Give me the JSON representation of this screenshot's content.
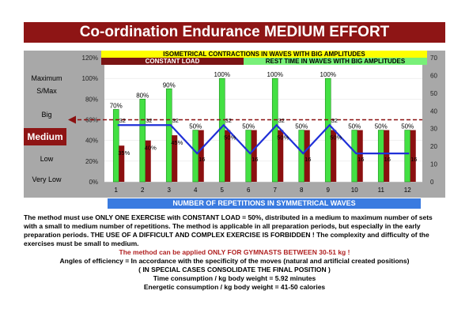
{
  "title": "Co-ordination Endurance MEDIUM EFFORT",
  "banners": {
    "top": "ISOMETRICAL CONTRACTIONS IN WAVES WITH BIG AMPLITUDES",
    "load": "CONSTANT LOAD",
    "rest": "REST TIME IN WAVES WITH BIG AMPLITUDES",
    "bottom": "NUMBER OF REPETITIONS IN SYMMETRICAL WAVES"
  },
  "scale_labels": {
    "maximum": "Maximum",
    "smax": "S/Max",
    "big": "Big",
    "medium": "Medium",
    "low": "Low",
    "very_low": "Very Low"
  },
  "chart_data": {
    "type": "bar",
    "categories": [
      "1",
      "2",
      "3",
      "4",
      "5",
      "6",
      "7",
      "8",
      "9",
      "10",
      "11",
      "12"
    ],
    "left_axis": {
      "ticks": [
        "120%",
        "100%",
        "80%",
        "60%",
        "40%",
        "20%",
        "0%"
      ],
      "ylim": [
        0,
        120
      ]
    },
    "right_axis": {
      "ticks": [
        "70",
        "60",
        "50",
        "40",
        "30",
        "20",
        "10",
        "0"
      ],
      "ylim": [
        0,
        70
      ]
    },
    "series": [
      {
        "values": [
          70,
          80,
          90,
          50,
          100,
          50,
          100,
          50,
          100,
          50,
          50,
          50
        ],
        "labels": [
          "70%",
          "80%",
          "90%",
          "50%",
          "100%",
          "50%",
          "100%",
          "50%",
          "100%",
          "50%",
          "50%",
          "50%"
        ],
        "color": "#43e043"
      },
      {
        "values": [
          35,
          40,
          45,
          50,
          50,
          50,
          50,
          50,
          50,
          50,
          50,
          50
        ],
        "labels": [
          "35%",
          "40%",
          "45%",
          "",
          "50%",
          "",
          "50%",
          "",
          "50%",
          "",
          "",
          ""
        ],
        "color": "#8b1010"
      },
      {
        "values": [
          32,
          32,
          32,
          16,
          32,
          16,
          32,
          16,
          32,
          16,
          16,
          16
        ],
        "labels": [
          "32",
          "32",
          "32",
          "16",
          "32",
          "16",
          "32",
          "16",
          "32",
          "16",
          "16",
          "16"
        ],
        "color": "#2030d8"
      }
    ],
    "reference_line": {
      "value": 60,
      "color": "#8b1010",
      "style": "dashed"
    }
  },
  "description": {
    "paragraph": "The method must use ONLY ONE EXERCISE with CONSTANT LOAD = 50%, distributed in a medium to maximum number of sets with a small to medium number of repetitions. The method is applicable in all preparation periods, but especially in the early preparation periods. THE USE OF A DIFFICULT AND COMPLEX EXERCISE IS FORBIDDEN ! The complexity and difficulty of the exercises must be small to medium.",
    "gymnasts": "The method can be applied ONLY FOR GYMNASTS BETWEEN 30-51 kg !",
    "angles": "Angles of efficiency = In accordance with the specificity of the moves (natural and artificial created positions)",
    "special": "( IN SPECIAL CASES CONSOLIDATE THE FINAL POSITION )",
    "time": "Time consumption / kg body weight = 5.92  minutes",
    "energy": "Energetic consumption / kg body weight = 41-50 calories"
  }
}
